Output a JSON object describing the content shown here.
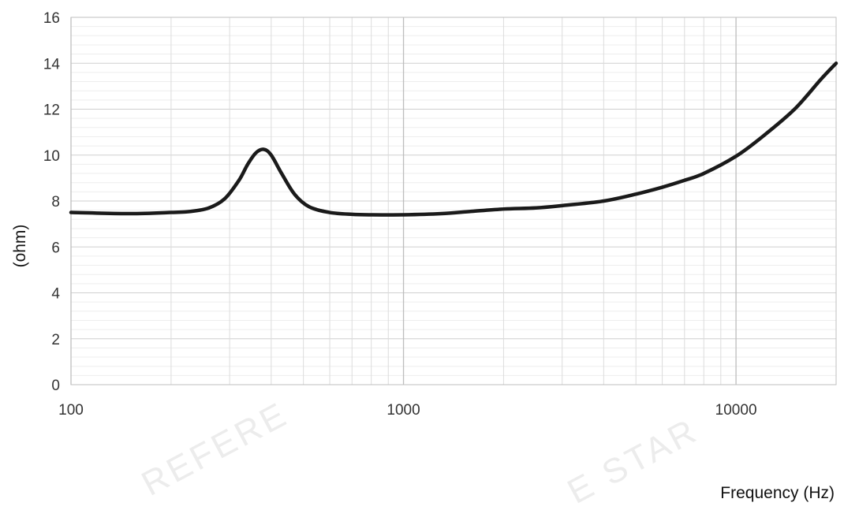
{
  "chart_data": {
    "type": "line",
    "title": "",
    "xlabel": "Frequency (Hz)",
    "ylabel": "(ohm)",
    "x_scale": "log",
    "xlim": [
      100,
      20000
    ],
    "ylim": [
      0,
      16
    ],
    "x_ticks": [
      100,
      1000,
      10000
    ],
    "x_tick_labels": [
      "100",
      "1000",
      "10000"
    ],
    "y_ticks": [
      0,
      2,
      4,
      6,
      8,
      10,
      12,
      14,
      16
    ],
    "y_tick_labels": [
      "0",
      "2",
      "4",
      "6",
      "8",
      "10",
      "12",
      "14",
      "16"
    ],
    "grid": true,
    "legend": "none",
    "line_color": "#1a1a1a",
    "series": [
      {
        "x": [
          100,
          150,
          200,
          230,
          260,
          290,
          320,
          340,
          360,
          380,
          400,
          430,
          470,
          520,
          600,
          700,
          800,
          1000,
          1300,
          1600,
          2000,
          2500,
          3000,
          4000,
          5000,
          6000,
          7000,
          8000,
          10000,
          12000,
          15000,
          18000,
          20000
        ],
        "y": [
          7.5,
          7.45,
          7.5,
          7.55,
          7.7,
          8.1,
          8.9,
          9.6,
          10.1,
          10.25,
          10.0,
          9.2,
          8.3,
          7.75,
          7.5,
          7.42,
          7.4,
          7.4,
          7.45,
          7.55,
          7.65,
          7.7,
          7.8,
          8.0,
          8.3,
          8.6,
          8.9,
          9.2,
          9.95,
          10.8,
          12.0,
          13.3,
          14.0
        ]
      }
    ]
  },
  "watermark": {
    "text_left": "REFERE",
    "text_right": "E STAR"
  }
}
